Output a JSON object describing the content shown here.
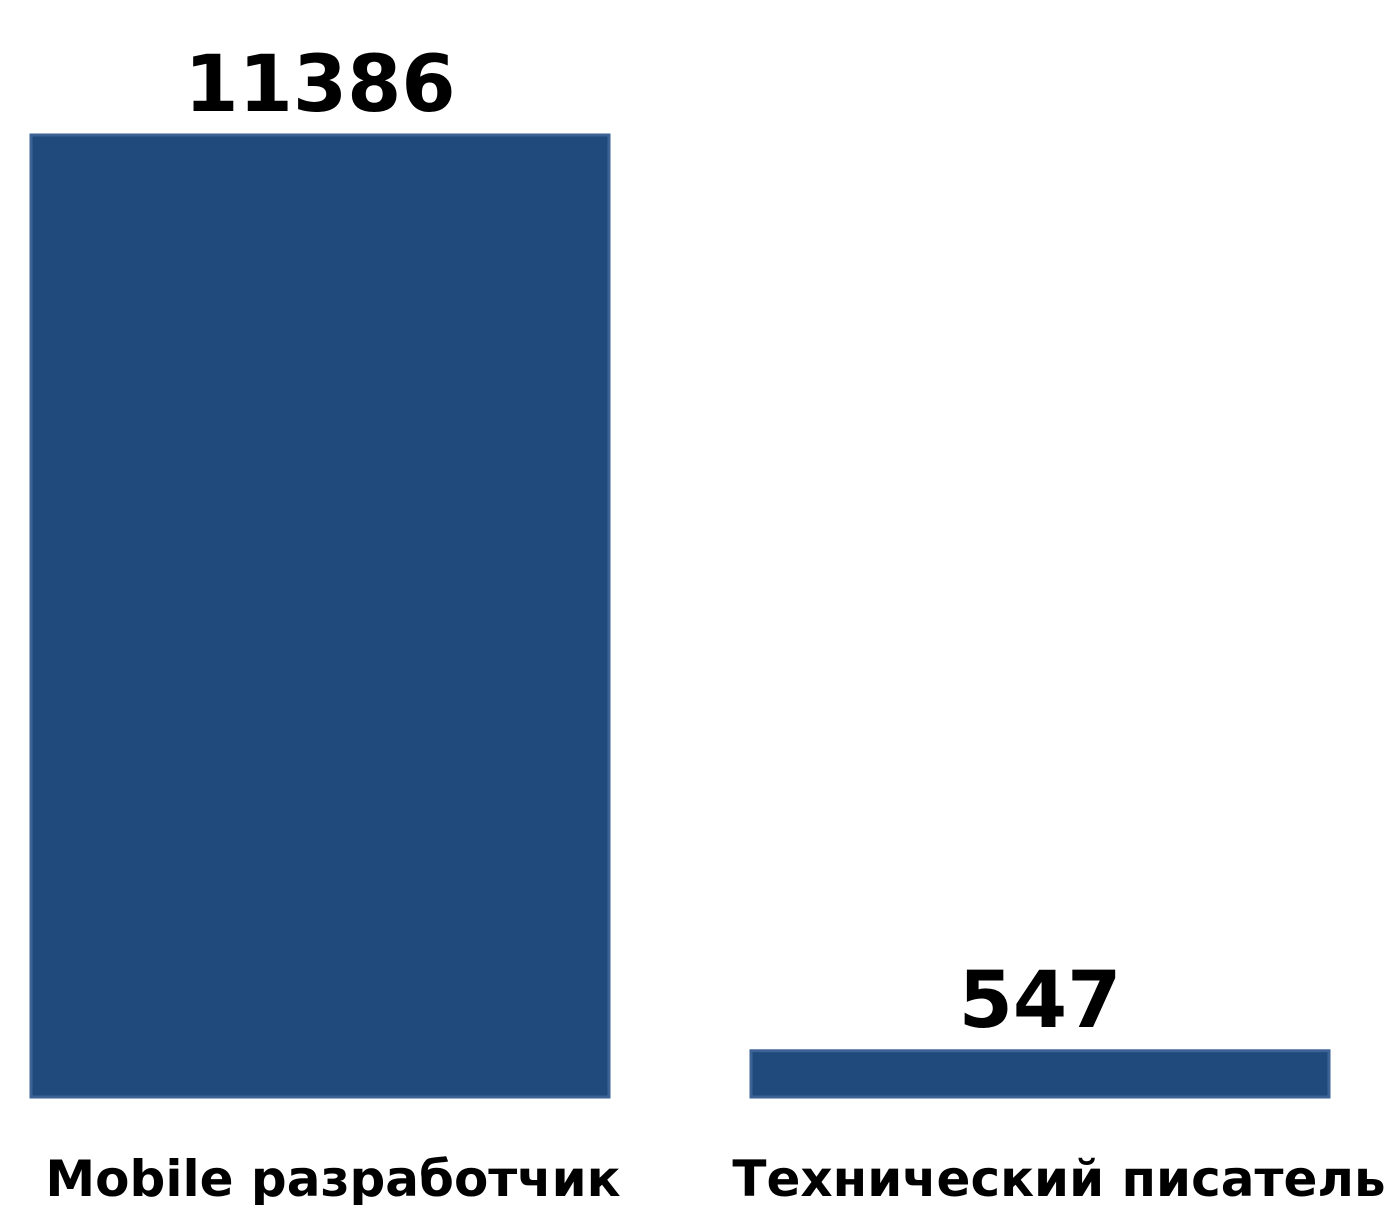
{
  "chart_data": {
    "type": "bar",
    "categories": [
      "Mobile разработчик",
      "Технический писатель"
    ],
    "values": [
      11386,
      547
    ],
    "color": "#214a7c"
  }
}
